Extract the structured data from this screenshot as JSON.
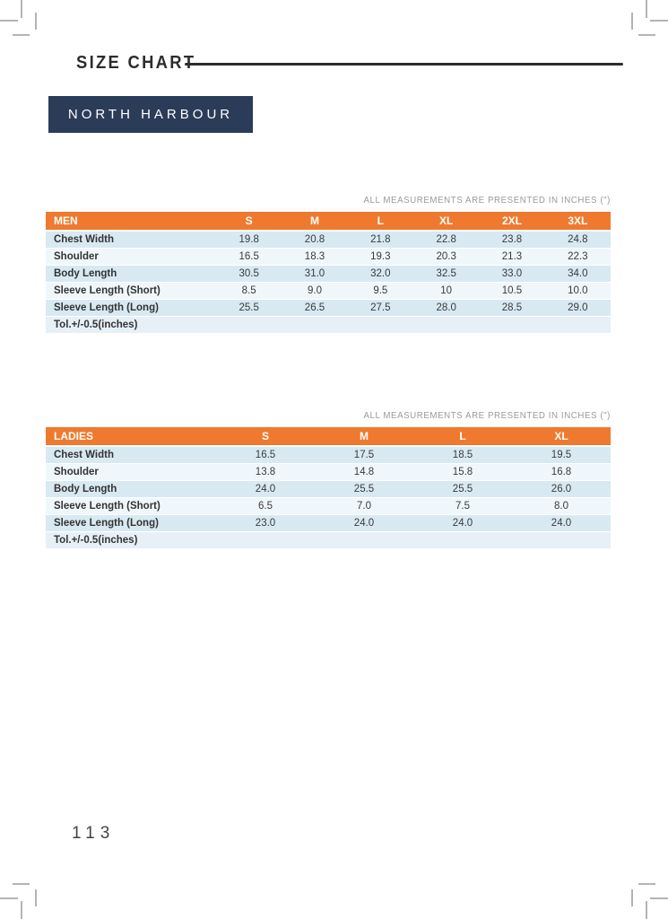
{
  "page": {
    "title": "SIZE CHART",
    "brand": "NORTH HARBOUR",
    "page_number": "113"
  },
  "colors": {
    "accent_orange": "#ef7a2f",
    "brand_navy": "#2b3c59",
    "row_blue": "#d8e9f2",
    "row_blue_light": "#f0f7fb",
    "note_gray": "#9a9a9a",
    "title_dark": "#2d2d2d"
  },
  "tables": [
    {
      "name": "MEN",
      "note": "ALL MEASUREMENTS ARE PRESENTED IN INCHES (\")",
      "columns": [
        "MEN",
        "S",
        "M",
        "L",
        "XL",
        "2XL",
        "3XL"
      ],
      "rows": [
        {
          "label": "Chest Width",
          "values": [
            "19.8",
            "20.8",
            "21.8",
            "22.8",
            "23.8",
            "24.8"
          ]
        },
        {
          "label": "Shoulder",
          "values": [
            "16.5",
            "18.3",
            "19.3",
            "20.3",
            "21.3",
            "22.3"
          ]
        },
        {
          "label": "Body Length",
          "values": [
            "30.5",
            "31.0",
            "32.0",
            "32.5",
            "33.0",
            "34.0"
          ]
        },
        {
          "label": "Sleeve Length  (Short)",
          "values": [
            "8.5",
            "9.0",
            "9.5",
            "10",
            "10.5",
            "10.0"
          ]
        },
        {
          "label": "Sleeve Length (Long)",
          "values": [
            "25.5",
            "26.5",
            "27.5",
            "28.0",
            "28.5",
            "29.0"
          ]
        },
        {
          "label": "Tol.+/-0.5(inches)",
          "values": [
            "",
            "",
            "",
            "",
            "",
            ""
          ]
        }
      ]
    },
    {
      "name": "LADIES",
      "note": "ALL MEASUREMENTS ARE PRESENTED IN INCHES (\")",
      "columns": [
        "LADIES",
        "S",
        "M",
        "L",
        "XL"
      ],
      "rows": [
        {
          "label": "Chest Width",
          "values": [
            "16.5",
            "17.5",
            "18.5",
            "19.5"
          ]
        },
        {
          "label": "Shoulder",
          "values": [
            "13.8",
            "14.8",
            "15.8",
            "16.8"
          ]
        },
        {
          "label": "Body Length",
          "values": [
            "24.0",
            "25.5",
            "25.5",
            "26.0"
          ]
        },
        {
          "label": "Sleeve Length  (Short)",
          "values": [
            "6.5",
            "7.0",
            "7.5",
            "8.0"
          ]
        },
        {
          "label": "Sleeve Length (Long)",
          "values": [
            "23.0",
            "24.0",
            "24.0",
            "24.0"
          ]
        },
        {
          "label": "Tol.+/-0.5(inches)",
          "values": [
            "",
            "",
            "",
            ""
          ]
        }
      ]
    }
  ]
}
